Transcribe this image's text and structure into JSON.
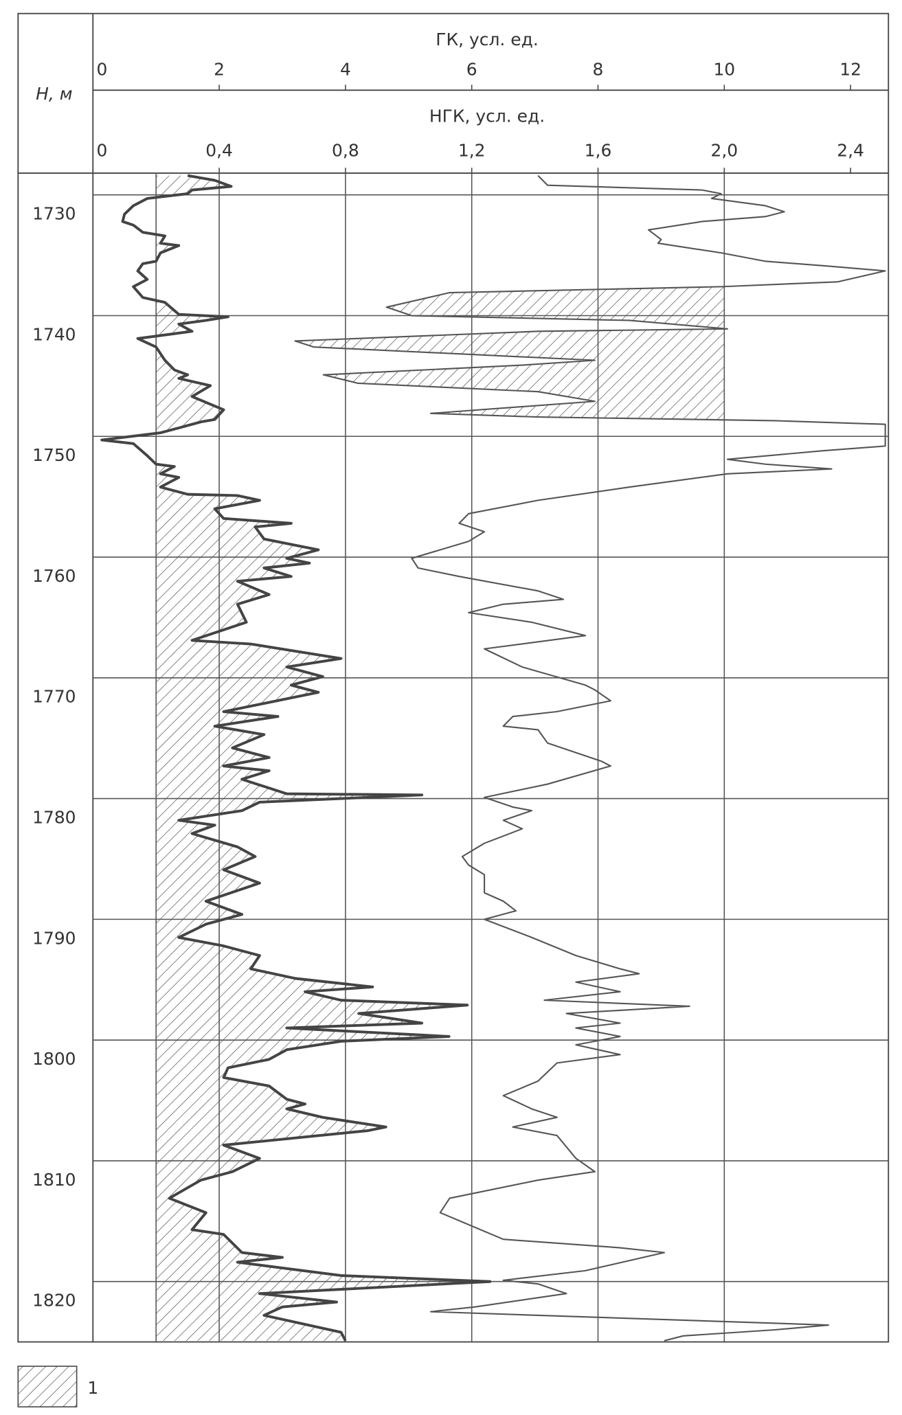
{
  "chart_data": {
    "type": "well-log",
    "depth_label": "H, м",
    "ylim": [
      1728.2,
      1825
    ],
    "yticks": [
      1730,
      1740,
      1750,
      1760,
      1770,
      1780,
      1790,
      1800,
      1810,
      1820
    ],
    "grid": true,
    "axes": {
      "gk": {
        "label": "ГК, усл. ед.",
        "xlim": [
          0,
          12.6
        ],
        "xticks": [
          0,
          2,
          4,
          6,
          8,
          10,
          12
        ],
        "hatch_baseline": 1
      },
      "ngk": {
        "label": "НГК, усл. ед.",
        "xlim": [
          0,
          2.52
        ],
        "xticks": [
          0,
          {
            "value": 0.4,
            "label": "0,4"
          },
          {
            "value": 0.8,
            "label": "0,8"
          },
          {
            "value": 1.2,
            "label": "1,2"
          },
          {
            "value": 1.6,
            "label": "1,6"
          },
          {
            "value": 2.0,
            "label": "2,0"
          },
          {
            "value": 2.4,
            "label": "2,4"
          }
        ]
      }
    },
    "legend": {
      "label": "1"
    },
    "series": [
      {
        "axis": "gk",
        "color": "#444444",
        "hatch": "baseline",
        "depth": [
          1728.4,
          1728.8,
          1729.3,
          1729.6,
          1729.9,
          1730.3,
          1730.9,
          1731.6,
          1732.2,
          1732.5,
          1733.1,
          1733.4,
          1734.0,
          1734.2,
          1734.8,
          1735.5,
          1735.7,
          1736.3,
          1737.0,
          1737.6,
          1738.5,
          1738.9,
          1739.9,
          1740.1,
          1740.4,
          1740.7,
          1741.3,
          1741.9,
          1742.6,
          1743.7,
          1744.5,
          1744.9,
          1745.2,
          1745.8,
          1746.7,
          1747.8,
          1748.6,
          1748.8,
          1749.3,
          1749.7,
          1750.3,
          1750.6,
          1751.6,
          1752.3,
          1752.5,
          1753.1,
          1753.4,
          1754.2,
          1754.8,
          1754.9,
          1755.3,
          1756.0,
          1756.8,
          1757.2,
          1757.5,
          1758.5,
          1759.4,
          1760.1,
          1760.5,
          1760.9,
          1761.6,
          1762.0,
          1763.1,
          1763.9,
          1765.4,
          1766.9,
          1767.2,
          1768.4,
          1769.1,
          1769.9,
          1770.6,
          1771.2,
          1772.8,
          1773.2,
          1774.0,
          1774.7,
          1775.8,
          1776.6,
          1777.3,
          1777.7,
          1778.4,
          1779.6,
          1779.7,
          1780.3,
          1781.0,
          1781.8,
          1782.2,
          1782.9,
          1784.0,
          1784.8,
          1785.9,
          1787.0,
          1788.5,
          1789.6,
          1790.4,
          1791.5,
          1792.2,
          1793.0,
          1794.1,
          1794.9,
          1795.6,
          1796.0,
          1796.7,
          1797.1,
          1797.8,
          1798.6,
          1799.0,
          1799.7,
          1800.1,
          1800.8,
          1801.6,
          1802.3,
          1803.1,
          1803.8,
          1804.9,
          1805.3,
          1805.7,
          1806.4,
          1807.2,
          1807.5,
          1808.7,
          1809.8,
          1810.9,
          1811.6,
          1813.1,
          1814.3,
          1815.7,
          1816.1,
          1817.6,
          1818.0,
          1818.4,
          1819.5,
          1820.0,
          1821.0,
          1821.7,
          1822.1,
          1822.8,
          1824.2,
          1824.9
        ],
        "values": [
          1.5,
          1.93,
          2.19,
          1.57,
          1.5,
          0.86,
          0.64,
          0.5,
          0.47,
          0.64,
          0.79,
          1.14,
          1.07,
          1.36,
          1.07,
          1.0,
          0.79,
          0.71,
          0.86,
          0.64,
          0.79,
          1.14,
          1.36,
          2.14,
          1.79,
          1.36,
          1.57,
          0.71,
          1.0,
          1.14,
          1.29,
          1.5,
          1.36,
          1.86,
          1.57,
          2.07,
          1.93,
          1.71,
          1.36,
          1.07,
          0.14,
          0.64,
          0.86,
          1.0,
          1.29,
          1.07,
          1.36,
          1.07,
          1.5,
          2.29,
          2.64,
          1.93,
          2.07,
          3.14,
          2.57,
          2.71,
          3.57,
          3.07,
          3.43,
          2.71,
          3.14,
          2.29,
          2.79,
          2.29,
          2.43,
          1.57,
          2.5,
          3.93,
          3.07,
          3.64,
          3.14,
          3.57,
          2.07,
          2.93,
          1.93,
          2.71,
          2.21,
          2.79,
          2.07,
          2.79,
          2.36,
          3.07,
          5.21,
          2.64,
          2.36,
          1.36,
          1.93,
          1.57,
          2.29,
          2.57,
          2.07,
          2.64,
          1.79,
          2.36,
          1.79,
          1.36,
          2.07,
          2.64,
          2.5,
          3.21,
          4.43,
          3.36,
          3.93,
          5.93,
          4.21,
          5.21,
          3.07,
          5.64,
          3.93,
          3.07,
          2.79,
          2.14,
          2.07,
          2.79,
          3.07,
          3.36,
          3.07,
          3.64,
          4.64,
          4.36,
          2.07,
          2.64,
          2.21,
          1.71,
          1.21,
          1.79,
          1.57,
          2.07,
          2.36,
          3.0,
          2.29,
          3.93,
          6.29,
          2.64,
          3.86,
          3.0,
          2.71,
          3.93,
          4.0
        ]
      },
      {
        "axis": "ngk",
        "color": "#555555",
        "hatch": "zone",
        "hatch_zone": {
          "from": 1737.5,
          "to": 1749,
          "bound": 2.0
        },
        "depth": [
          1728.4,
          1729.2,
          1729.6,
          1729.9,
          1730.3,
          1730.9,
          1731.4,
          1731.8,
          1732.2,
          1732.9,
          1733.7,
          1734.0,
          1734.8,
          1735.5,
          1735.9,
          1736.3,
          1737.2,
          1737.6,
          1738.1,
          1739.3,
          1740.0,
          1740.4,
          1741.1,
          1741.3,
          1742.1,
          1742.6,
          1743.7,
          1744.1,
          1744.9,
          1745.6,
          1746.3,
          1747.1,
          1748.1,
          1748.4,
          1748.7,
          1749.0,
          1750.8,
          1751.2,
          1751.9,
          1752.3,
          1752.7,
          1753.1,
          1754.2,
          1755.3,
          1756.4,
          1757.2,
          1757.9,
          1758.7,
          1760.1,
          1760.9,
          1761.6,
          1762.8,
          1763.5,
          1763.9,
          1764.6,
          1765.4,
          1766.5,
          1767.6,
          1769.1,
          1770.6,
          1771.0,
          1771.9,
          1772.8,
          1773.2,
          1774.0,
          1774.3,
          1775.4,
          1776.9,
          1777.3,
          1778.8,
          1779.9,
          1780.7,
          1781.0,
          1781.8,
          1782.5,
          1783.7,
          1784.8,
          1785.5,
          1786.3,
          1787.8,
          1788.5,
          1789.3,
          1790.0,
          1791.5,
          1793.0,
          1794.1,
          1794.5,
          1795.2,
          1796.0,
          1796.7,
          1797.2,
          1797.8,
          1798.6,
          1799.0,
          1799.7,
          1800.4,
          1801.2,
          1801.9,
          1803.4,
          1804.6,
          1805.7,
          1806.4,
          1807.2,
          1807.9,
          1809.8,
          1810.9,
          1811.6,
          1813.1,
          1814.3,
          1816.5,
          1817.2,
          1817.6,
          1819.1,
          1819.9,
          1820.2,
          1821.0,
          1822.1,
          1822.5,
          1823.6,
          1824.0,
          1824.5,
          1824.9
        ],
        "values": [
          1.41,
          1.44,
          1.93,
          1.99,
          1.96,
          2.13,
          2.19,
          2.13,
          1.93,
          1.76,
          1.8,
          1.79,
          1.99,
          2.13,
          2.33,
          2.51,
          2.36,
          1.99,
          1.13,
          0.93,
          1.01,
          1.7,
          2.01,
          1.41,
          0.64,
          0.7,
          1.59,
          1.36,
          0.73,
          0.84,
          1.41,
          1.59,
          1.07,
          1.41,
          2.16,
          2.51,
          2.51,
          2.31,
          2.01,
          2.13,
          2.34,
          2.01,
          1.7,
          1.41,
          1.19,
          1.16,
          1.24,
          1.19,
          1.01,
          1.03,
          1.16,
          1.41,
          1.49,
          1.3,
          1.19,
          1.39,
          1.56,
          1.24,
          1.36,
          1.56,
          1.59,
          1.64,
          1.47,
          1.33,
          1.3,
          1.41,
          1.44,
          1.61,
          1.64,
          1.44,
          1.24,
          1.33,
          1.39,
          1.3,
          1.36,
          1.24,
          1.17,
          1.19,
          1.24,
          1.24,
          1.3,
          1.34,
          1.24,
          1.39,
          1.53,
          1.67,
          1.73,
          1.53,
          1.67,
          1.43,
          1.89,
          1.5,
          1.67,
          1.53,
          1.67,
          1.53,
          1.67,
          1.47,
          1.41,
          1.3,
          1.39,
          1.47,
          1.33,
          1.47,
          1.53,
          1.59,
          1.41,
          1.13,
          1.1,
          1.3,
          1.67,
          1.81,
          1.56,
          1.3,
          1.41,
          1.5,
          1.21,
          1.07,
          2.33,
          2.16,
          1.87,
          1.81
        ]
      }
    ]
  }
}
